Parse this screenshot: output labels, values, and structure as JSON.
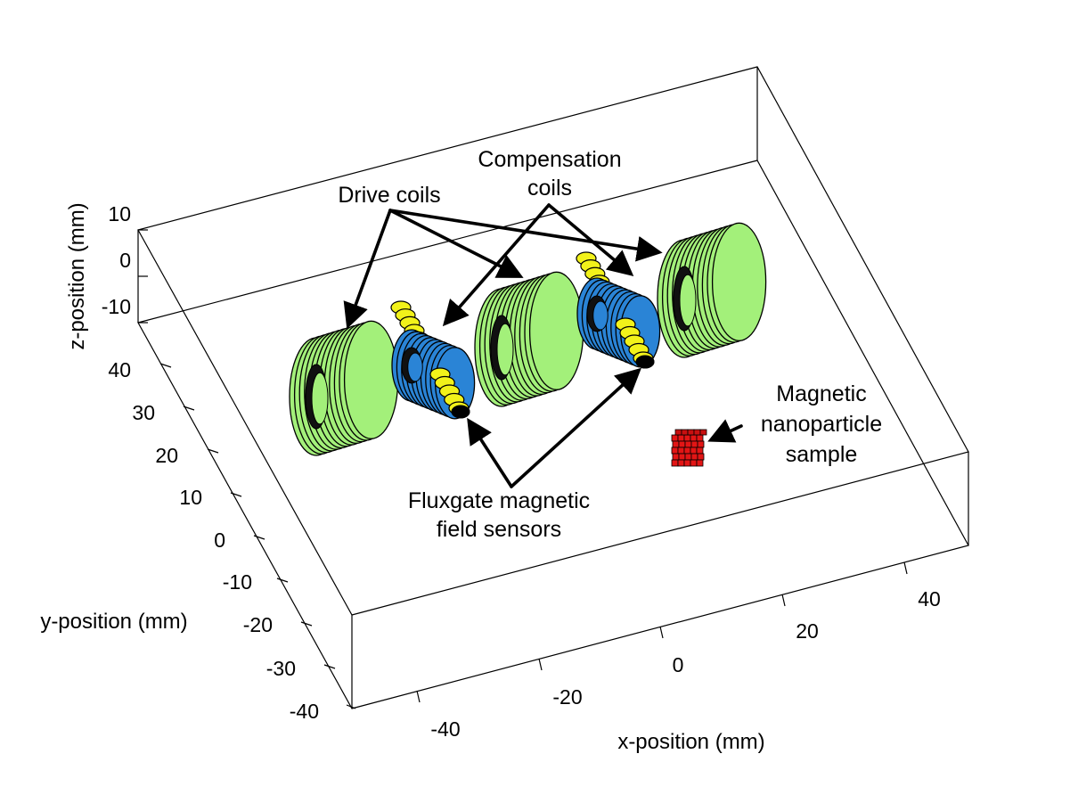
{
  "chart_data": {
    "type": "diagram",
    "xlabel": "x-position (mm)",
    "ylabel": "y-position (mm)",
    "zlabel": "z-position (mm)",
    "x_ticks": [
      "-40",
      "-20",
      "0",
      "20",
      "40"
    ],
    "y_ticks": [
      "40",
      "30",
      "20",
      "10",
      "0",
      "-10",
      "-20",
      "-30",
      "-40"
    ],
    "z_ticks": [
      "10",
      "0",
      "-10"
    ]
  },
  "annotations": {
    "drive_coils": "Drive coils",
    "compensation_line1": "Compensation",
    "compensation_line2": "coils",
    "fluxgate_line1": "Fluxgate magnetic",
    "fluxgate_line2": "field sensors",
    "sample_line1": "Magnetic",
    "sample_line2": "nanoparticle",
    "sample_line3": "sample"
  },
  "colors": {
    "drive_coil": "#a3f07a",
    "compensation_coil": "#2a84d6",
    "sensor": "#f2f21a",
    "sample": "#e31515",
    "box": "#000000"
  }
}
